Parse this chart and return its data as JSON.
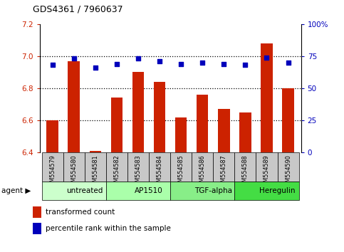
{
  "title": "GDS4361 / 7960637",
  "samples": [
    "GSM554579",
    "GSM554580",
    "GSM554581",
    "GSM554582",
    "GSM554583",
    "GSM554584",
    "GSM554585",
    "GSM554586",
    "GSM554587",
    "GSM554588",
    "GSM554589",
    "GSM554590"
  ],
  "bar_values": [
    6.6,
    6.97,
    6.41,
    6.74,
    6.9,
    6.84,
    6.62,
    6.76,
    6.67,
    6.65,
    7.08,
    6.8
  ],
  "dot_values": [
    68,
    73,
    66,
    69,
    73,
    71,
    69,
    70,
    69,
    68,
    74,
    70
  ],
  "ylim_left": [
    6.4,
    7.2
  ],
  "ylim_right": [
    0,
    100
  ],
  "yticks_left": [
    6.4,
    6.6,
    6.8,
    7.0,
    7.2
  ],
  "yticks_right": [
    0,
    25,
    50,
    75,
    100
  ],
  "ytick_labels_right": [
    "0",
    "25",
    "50",
    "75",
    "100%"
  ],
  "bar_color": "#CC2200",
  "dot_color": "#0000BB",
  "agent_groups": [
    {
      "label": "untreated",
      "start": 0,
      "end": 3,
      "color": "#CCFFCC"
    },
    {
      "label": "AP1510",
      "start": 3,
      "end": 6,
      "color": "#AAFFAA"
    },
    {
      "label": "TGF-alpha",
      "start": 6,
      "end": 9,
      "color": "#88EE88"
    },
    {
      "label": "Heregulin",
      "start": 9,
      "end": 12,
      "color": "#44DD44"
    }
  ],
  "legend_bar_label": "transformed count",
  "legend_dot_label": "percentile rank within the sample",
  "grid_color": "#000000",
  "tick_area_color": "#C8C8C8",
  "bar_bottom": 6.4
}
